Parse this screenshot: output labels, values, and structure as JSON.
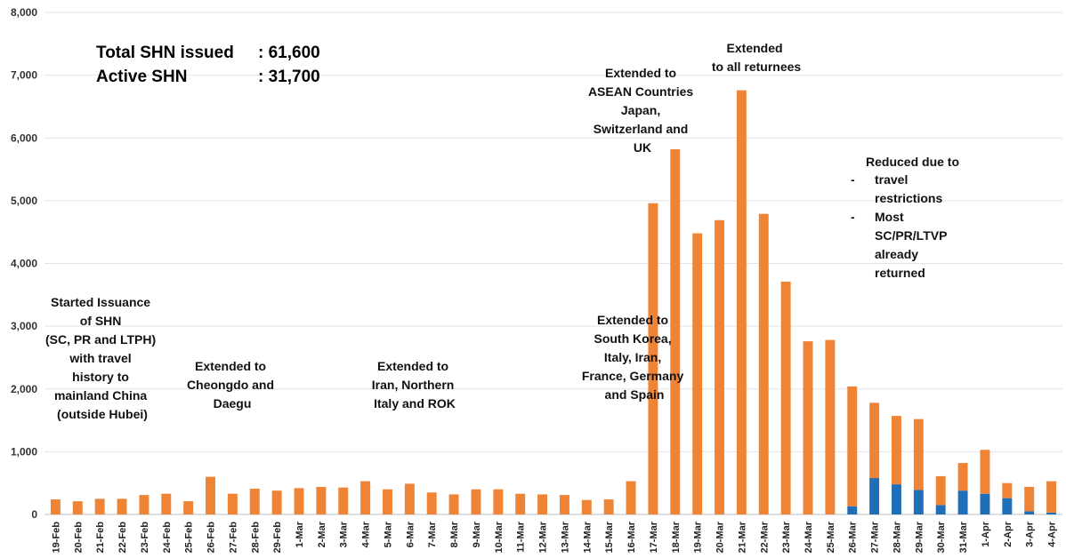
{
  "chart_data": {
    "type": "bar",
    "stacked": true,
    "title": "",
    "xlabel": "",
    "ylabel": "",
    "ylim": [
      0,
      8000
    ],
    "yticks": [
      "0",
      "1,000",
      "2,000",
      "3,000",
      "4,000",
      "5,000",
      "6,000",
      "7,000",
      "8,000"
    ],
    "grid": "horizontal",
    "legend": "none",
    "categories": [
      "19-Feb",
      "20-Feb",
      "21-Feb",
      "22-Feb",
      "23-Feb",
      "24-Feb",
      "25-Feb",
      "26-Feb",
      "27-Feb",
      "28-Feb",
      "29-Feb",
      "1-Mar",
      "2-Mar",
      "3-Mar",
      "4-Mar",
      "5-Mar",
      "6-Mar",
      "7-Mar",
      "8-Mar",
      "9-Mar",
      "10-Mar",
      "11-Mar",
      "12-Mar",
      "13-Mar",
      "14-Mar",
      "15-Mar",
      "16-Mar",
      "17-Mar",
      "18-Mar",
      "19-Mar",
      "20-Mar",
      "21-Mar",
      "22-Mar",
      "23-Mar",
      "24-Mar",
      "25-Mar",
      "26-Mar",
      "27-Mar",
      "28-Mar",
      "29-Mar",
      "30-Mar",
      "31-Mar",
      "1-Apr",
      "2-Apr",
      "3-Apr",
      "4-Apr"
    ],
    "series": [
      {
        "color": "#1f6fb8",
        "values": [
          0,
          0,
          0,
          0,
          0,
          0,
          0,
          0,
          0,
          0,
          0,
          0,
          0,
          0,
          0,
          0,
          0,
          0,
          0,
          0,
          0,
          0,
          0,
          0,
          0,
          0,
          0,
          0,
          0,
          0,
          0,
          0,
          0,
          0,
          0,
          0,
          130,
          580,
          480,
          390,
          150,
          380,
          330,
          260,
          50,
          30
        ]
      },
      {
        "color": "#ef8436",
        "values": [
          240,
          210,
          250,
          250,
          310,
          330,
          210,
          600,
          330,
          410,
          380,
          420,
          440,
          430,
          530,
          400,
          490,
          350,
          320,
          400,
          400,
          330,
          320,
          310,
          230,
          240,
          530,
          4960,
          5820,
          4480,
          4690,
          6760,
          4790,
          3710,
          2760,
          2780,
          1910,
          1200,
          1090,
          1130,
          460,
          440,
          700,
          240,
          390,
          500
        ]
      }
    ],
    "annotations": [
      {
        "name": "summary-total",
        "lines": [
          "Total SHN issued",
          ": 61,600"
        ]
      },
      {
        "name": "summary-active",
        "lines": [
          "Active SHN",
          ": 31,700"
        ]
      },
      {
        "name": "note-started-issuance",
        "lines": [
          "Started Issuance",
          "of SHN",
          "(SC, PR and LTPH)",
          "with travel",
          "history to",
          "mainland China",
          "(outside Hubei)"
        ]
      },
      {
        "name": "note-cheongdo-daegu",
        "lines": [
          "Extended to",
          "Cheongdo and",
          "Daegu"
        ]
      },
      {
        "name": "note-iran-italy-rok",
        "lines": [
          "Extended to",
          "Iran, Northern",
          "Italy and ROK"
        ]
      },
      {
        "name": "note-korea-europe",
        "lines": [
          "Extended to",
          "South Korea,",
          "Italy, Iran,",
          "France, Germany",
          "and Spain"
        ]
      },
      {
        "name": "note-asean",
        "lines": [
          "Extended to",
          "ASEAN Countries",
          "Japan,",
          "Switzerland and",
          "UK"
        ]
      },
      {
        "name": "note-all-returnees",
        "lines": [
          "Extended",
          "to all returnees"
        ]
      },
      {
        "name": "note-reduced",
        "lines": [
          "Reduced due to",
          "travel",
          "restrictions",
          "Most",
          "SC/PR/LTVP",
          "already",
          "returned"
        ],
        "bullet": "-"
      }
    ]
  }
}
